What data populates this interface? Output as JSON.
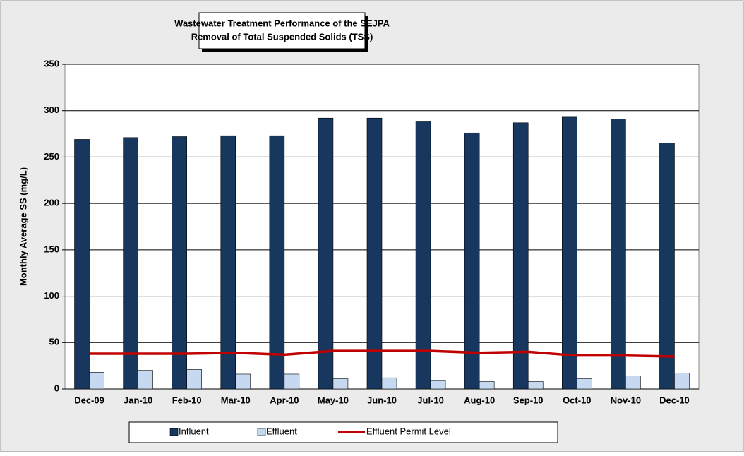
{
  "chart_data": {
    "type": "bar",
    "title": "Wastewater Treatment Performance of the SEJPA",
    "subtitle": "Removal of Total Suspended Solids (TSS)",
    "y_label": "Monthly Average SS (mg/L)",
    "categories": [
      "Dec-09",
      "Jan-10",
      "Feb-10",
      "Mar-10",
      "Apr-10",
      "May-10",
      "Jun-10",
      "Jul-10",
      "Aug-10",
      "Sep-10",
      "Oct-10",
      "Nov-10",
      "Dec-10"
    ],
    "series": [
      {
        "name": "Influent",
        "type": "bar",
        "color": "#17375e",
        "values": [
          269,
          271,
          272,
          273,
          273,
          292,
          292,
          288,
          276,
          287,
          293,
          291,
          265
        ]
      },
      {
        "name": "Effluent",
        "type": "bar",
        "color": "#c6d9f1",
        "values": [
          18,
          20,
          21,
          16,
          16,
          11,
          12,
          9,
          8,
          8,
          11,
          14,
          17
        ]
      },
      {
        "name": "Effluent Permit Level",
        "type": "line",
        "color": "#c00000",
        "values": [
          38,
          38,
          38,
          39,
          37,
          41,
          41,
          41,
          39,
          40,
          36,
          36,
          35
        ]
      }
    ],
    "ylim": [
      0,
      350
    ],
    "yticks": [
      0,
      50,
      100,
      150,
      200,
      250,
      300,
      350
    ],
    "grid": true,
    "legend": "bottom"
  }
}
